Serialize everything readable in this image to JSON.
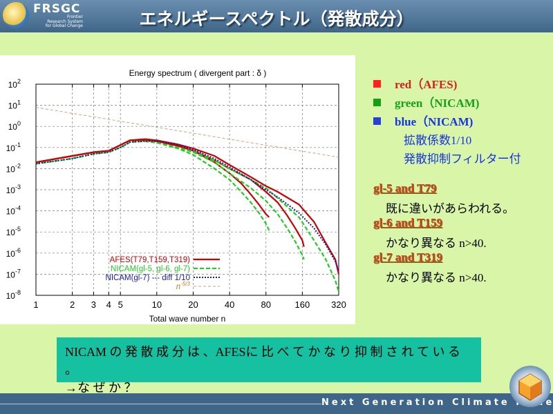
{
  "header": {
    "logo_title": "FRSGC",
    "logo_subtitle": [
      "Frontier",
      "Research System",
      "for Global Change"
    ],
    "title": "エネルギースペクトル（発散成分）"
  },
  "legend": {
    "items": [
      {
        "text": "red（AFES)",
        "color": "#d81e1e",
        "square": "#ff2020"
      },
      {
        "text": "green（NICAM)",
        "color": "#18a01a",
        "square": "#14a014"
      },
      {
        "text": "blue（NICAM)",
        "color": "#1534e0",
        "square": "#2a3ed8"
      }
    ],
    "blue_notes": [
      "拡散係数1/10",
      "発散抑制フィルター付"
    ]
  },
  "notes": [
    {
      "heading": "gl-5  and  T79",
      "text": "既に違いがあらわれる。"
    },
    {
      "heading": "gl-6 and  T159",
      "text": "かなり異なる  n>40."
    },
    {
      "heading": "gl-7  and T319",
      "text": "かなり異なる  n>40."
    }
  ],
  "conclusion": {
    "line1": "NICAM の 発 散 成 分 は 、AFESに 比 べ て か な り 抑 制 さ れ て い る 。",
    "line2": "→な ぜ か ？"
  },
  "footer": {
    "text": "Next Generation Climate Model"
  },
  "chart_data": {
    "type": "line",
    "title": "Energy spectrum ( divergent part : δ )",
    "xlabel": "Total wave number n",
    "x_scale": "log",
    "y_scale": "log",
    "xlim": [
      1,
      320
    ],
    "ylim_exponent": [
      -8,
      2
    ],
    "x_ticks": [
      "1",
      "2",
      "3",
      "4",
      "5",
      "10",
      "20",
      "40",
      "80",
      "160",
      "320"
    ],
    "y_ticks": [
      "10^2",
      "10^1",
      "10^0",
      "10^-1",
      "10^-2",
      "10^-3",
      "10^-4",
      "10^-5",
      "10^-6",
      "10^-7",
      "10^-8"
    ],
    "grid": true,
    "legend_position": "bottom-left",
    "legend": [
      {
        "label": "AFES(T79,T159,T319)",
        "color": "#cc0000",
        "dash": "solid"
      },
      {
        "label": "NICAM(gl-5, gl-6, gl-7)",
        "color": "#22cc22",
        "dash": "dashed"
      },
      {
        "label": "NICAM(gl-7) --- diff 1/10",
        "color": "#1a1aa8",
        "dash": "dotted"
      },
      {
        "label": "n^-5/3",
        "color": "#d2a080",
        "dash": "dashed-thin"
      }
    ],
    "series": [
      {
        "group": 0,
        "points": [
          [
            1,
            0.02
          ],
          [
            2,
            0.04
          ],
          [
            3,
            0.06
          ],
          [
            4,
            0.07
          ],
          [
            5,
            0.13
          ],
          [
            6,
            0.22
          ],
          [
            8,
            0.22
          ],
          [
            10,
            0.2
          ],
          [
            15,
            0.12
          ],
          [
            20,
            0.07
          ],
          [
            30,
            0.02
          ],
          [
            40,
            0.006
          ],
          [
            50,
            0.002
          ],
          [
            60,
            0.0006
          ],
          [
            70,
            0.0002
          ],
          [
            80,
            7e-05
          ],
          [
            85,
            5e-05
          ]
        ]
      },
      {
        "group": 0,
        "points": [
          [
            1,
            0.02
          ],
          [
            2,
            0.04
          ],
          [
            3,
            0.06
          ],
          [
            4,
            0.07
          ],
          [
            5,
            0.13
          ],
          [
            6,
            0.22
          ],
          [
            8,
            0.22
          ],
          [
            10,
            0.2
          ],
          [
            15,
            0.12
          ],
          [
            20,
            0.07
          ],
          [
            30,
            0.025
          ],
          [
            40,
            0.01
          ],
          [
            60,
            0.003
          ],
          [
            80,
            0.0008
          ],
          [
            100,
            0.00025
          ],
          [
            120,
            6e-05
          ],
          [
            140,
            1.5e-05
          ],
          [
            160,
            4e-06
          ],
          [
            165,
            2e-06
          ]
        ]
      },
      {
        "group": 0,
        "points": [
          [
            1,
            0.02
          ],
          [
            2,
            0.04
          ],
          [
            3,
            0.06
          ],
          [
            4,
            0.07
          ],
          [
            5,
            0.13
          ],
          [
            6,
            0.22
          ],
          [
            8,
            0.25
          ],
          [
            10,
            0.22
          ],
          [
            15,
            0.14
          ],
          [
            20,
            0.09
          ],
          [
            30,
            0.04
          ],
          [
            40,
            0.015
          ],
          [
            60,
            0.004
          ],
          [
            80,
            0.0015
          ],
          [
            100,
            0.0008
          ],
          [
            150,
            0.0002
          ],
          [
            200,
            3e-05
          ],
          [
            250,
            3e-06
          ],
          [
            300,
            5e-07
          ],
          [
            320,
            1e-07
          ]
        ]
      },
      {
        "group": 1,
        "points": [
          [
            1,
            0.017
          ],
          [
            2,
            0.03
          ],
          [
            3,
            0.05
          ],
          [
            4,
            0.06
          ],
          [
            5,
            0.1
          ],
          [
            6,
            0.18
          ],
          [
            8,
            0.2
          ],
          [
            10,
            0.17
          ],
          [
            15,
            0.09
          ],
          [
            20,
            0.045
          ],
          [
            30,
            0.01
          ],
          [
            40,
            0.003
          ],
          [
            50,
            0.0008
          ],
          [
            60,
            0.00025
          ],
          [
            70,
            8e-05
          ],
          [
            80,
            2.5e-05
          ],
          [
            85,
            1.2e-05
          ]
        ]
      },
      {
        "group": 1,
        "points": [
          [
            1,
            0.017
          ],
          [
            2,
            0.03
          ],
          [
            3,
            0.05
          ],
          [
            4,
            0.06
          ],
          [
            5,
            0.1
          ],
          [
            6,
            0.18
          ],
          [
            8,
            0.2
          ],
          [
            10,
            0.17
          ],
          [
            15,
            0.1
          ],
          [
            20,
            0.06
          ],
          [
            30,
            0.02
          ],
          [
            40,
            0.006
          ],
          [
            60,
            0.0012
          ],
          [
            80,
            0.0003
          ],
          [
            100,
            7e-05
          ],
          [
            120,
            1.5e-05
          ],
          [
            140,
            3.5e-06
          ],
          [
            160,
            8e-07
          ],
          [
            165,
            5e-07
          ]
        ]
      },
      {
        "group": 1,
        "points": [
          [
            1,
            0.017
          ],
          [
            2,
            0.03
          ],
          [
            3,
            0.05
          ],
          [
            4,
            0.06
          ],
          [
            5,
            0.1
          ],
          [
            6,
            0.18
          ],
          [
            8,
            0.2
          ],
          [
            10,
            0.17
          ],
          [
            15,
            0.1
          ],
          [
            20,
            0.065
          ],
          [
            30,
            0.025
          ],
          [
            40,
            0.01
          ],
          [
            60,
            0.003
          ],
          [
            80,
            0.0012
          ],
          [
            100,
            0.0004
          ],
          [
            150,
            5e-05
          ],
          [
            200,
            4e-06
          ],
          [
            250,
            5e-07
          ],
          [
            300,
            5e-08
          ],
          [
            320,
            1.5e-08
          ]
        ]
      },
      {
        "group": 2,
        "points": [
          [
            1,
            0.017
          ],
          [
            2,
            0.03
          ],
          [
            3,
            0.05
          ],
          [
            4,
            0.06
          ],
          [
            5,
            0.1
          ],
          [
            6,
            0.18
          ],
          [
            8,
            0.2
          ],
          [
            10,
            0.2
          ],
          [
            15,
            0.14
          ],
          [
            20,
            0.08
          ],
          [
            30,
            0.03
          ],
          [
            40,
            0.012
          ],
          [
            60,
            0.003
          ],
          [
            80,
            0.001
          ],
          [
            100,
            0.00045
          ],
          [
            150,
            8e-05
          ],
          [
            200,
            1.5e-05
          ],
          [
            250,
            2.5e-06
          ],
          [
            300,
            4e-07
          ],
          [
            320,
            1.5e-07
          ]
        ]
      },
      {
        "group": 3,
        "points": [
          [
            1,
            8
          ],
          [
            320,
            0.035
          ]
        ]
      }
    ]
  }
}
